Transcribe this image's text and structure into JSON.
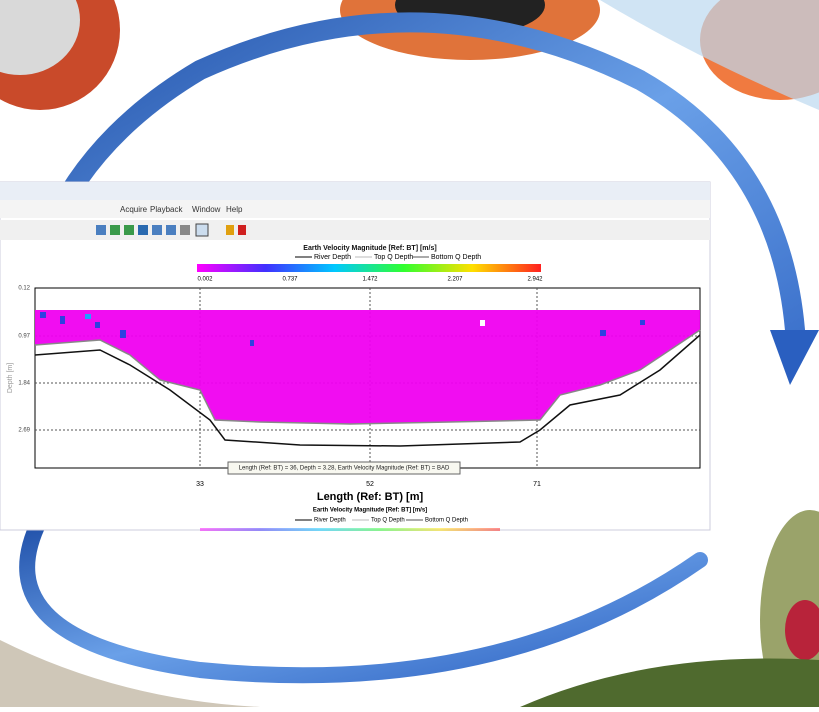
{
  "menu": [
    "Acquire",
    "Playback",
    "Window",
    "Help"
  ],
  "plot": {
    "title": "Earth Velocity Magnitude [Ref: BT] [m/s]",
    "legend": [
      "River Depth",
      "Top Q Depth",
      "Bottom Q Depth"
    ],
    "colorbar_ticks": [
      0.002,
      0.737,
      1.472,
      2.207,
      2.942
    ],
    "y_label": "Depth [m]",
    "yticks": [
      0.12,
      0.97,
      1.84,
      2.69
    ],
    "xticks": [
      33,
      52,
      71
    ],
    "x_label": "Length (Ref: BT) [m]",
    "tooltip": "Length (Ref: BT) = 36, Depth = 3.28, Earth Velocity Magnitude (Ref: BT) = BAD"
  },
  "caption": {
    "title": "Earth Velocity Magnitude [Ref: BT] [m/s]",
    "legend": [
      "River Depth",
      "Top Q Depth",
      "Bottom Q Depth"
    ]
  }
}
